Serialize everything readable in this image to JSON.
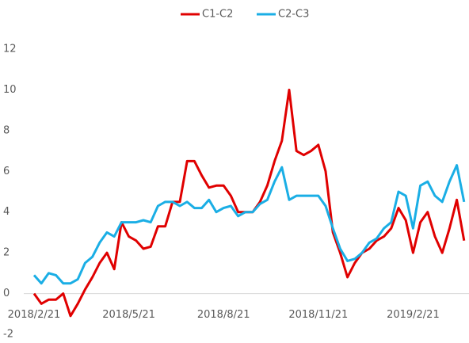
{
  "chart_data": {
    "type": "line",
    "categories": [
      "2018/2/21",
      null,
      null,
      null,
      null,
      null,
      null,
      null,
      null,
      null,
      null,
      null,
      null,
      "2018/5/21",
      null,
      null,
      null,
      null,
      null,
      null,
      null,
      null,
      null,
      null,
      null,
      null,
      "2018/8/21",
      null,
      null,
      null,
      null,
      null,
      null,
      null,
      null,
      null,
      null,
      null,
      null,
      "2018/11/21",
      null,
      null,
      null,
      null,
      null,
      null,
      null,
      null,
      null,
      null,
      null,
      null,
      "2019/2/21",
      null,
      null,
      null,
      null,
      null,
      null,
      null
    ],
    "series": [
      {
        "name": "C1-C2",
        "color": "#e00000",
        "values": [
          0,
          -0.5,
          -0.3,
          -0.3,
          0,
          -1.1,
          -0.5,
          0.2,
          0.8,
          1.5,
          2.0,
          1.2,
          3.5,
          2.8,
          2.6,
          2.2,
          2.3,
          3.3,
          3.3,
          4.5,
          4.5,
          6.5,
          6.5,
          5.8,
          5.2,
          5.3,
          5.3,
          4.8,
          4.0,
          4.0,
          4.0,
          4.5,
          5.3,
          6.5,
          7.5,
          10.0,
          7.0,
          6.8,
          7.0,
          7.3,
          6.0,
          3.0,
          2.0,
          0.8,
          1.5,
          2.0,
          2.2,
          2.6,
          2.8,
          3.2,
          4.2,
          3.6,
          2.0,
          3.5,
          4.0,
          2.8,
          2.0,
          3.2,
          4.6,
          2.6
        ]
      },
      {
        "name": "C2-C3",
        "color": "#1aaee5",
        "values": [
          0.9,
          0.5,
          1.0,
          0.9,
          0.5,
          0.5,
          0.7,
          1.5,
          1.8,
          2.5,
          3.0,
          2.8,
          3.5,
          3.5,
          3.5,
          3.6,
          3.5,
          4.3,
          4.5,
          4.5,
          4.3,
          4.5,
          4.2,
          4.2,
          4.6,
          4.0,
          4.2,
          4.3,
          3.8,
          4.0,
          4.0,
          4.4,
          4.6,
          5.5,
          6.2,
          4.6,
          4.8,
          4.8,
          4.8,
          4.8,
          4.3,
          3.2,
          2.2,
          1.6,
          1.7,
          2.0,
          2.5,
          2.7,
          3.2,
          3.5,
          5.0,
          4.8,
          3.2,
          5.3,
          5.5,
          4.8,
          4.5,
          5.5,
          6.3,
          4.5
        ]
      }
    ],
    "ylim": [
      -2,
      12
    ],
    "yticks": [
      -2,
      0,
      2,
      4,
      6,
      8,
      10,
      12
    ],
    "legend": "top"
  }
}
